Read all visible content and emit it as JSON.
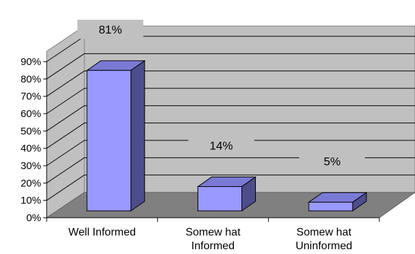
{
  "chart_data": {
    "type": "bar",
    "categories": [
      "Well Informed",
      "Somew hat Informed",
      "Somew hat Uninformed"
    ],
    "category_lines": [
      [
        "Well Informed"
      ],
      [
        "Somew hat",
        "Informed"
      ],
      [
        "Somew hat",
        "Uninformed"
      ]
    ],
    "values": [
      81,
      14,
      5
    ],
    "data_labels": [
      "81%",
      "14%",
      "5%"
    ],
    "ylim": [
      0,
      90
    ],
    "y_ticks": [
      0,
      10,
      20,
      30,
      40,
      50,
      60,
      70,
      80,
      90
    ],
    "y_tick_labels": [
      "0%",
      "10%",
      "20%",
      "30%",
      "40%",
      "50%",
      "60%",
      "70%",
      "80%",
      "90%"
    ],
    "grid": true,
    "style": "3d-column",
    "colors": {
      "bar_front": "#9999ff",
      "bar_side": "#4d4d8c",
      "bar_top": "#7a7ad6",
      "wall": "#c0c0c0",
      "floor": "#808080",
      "label_background": "#c0c0c0"
    }
  }
}
